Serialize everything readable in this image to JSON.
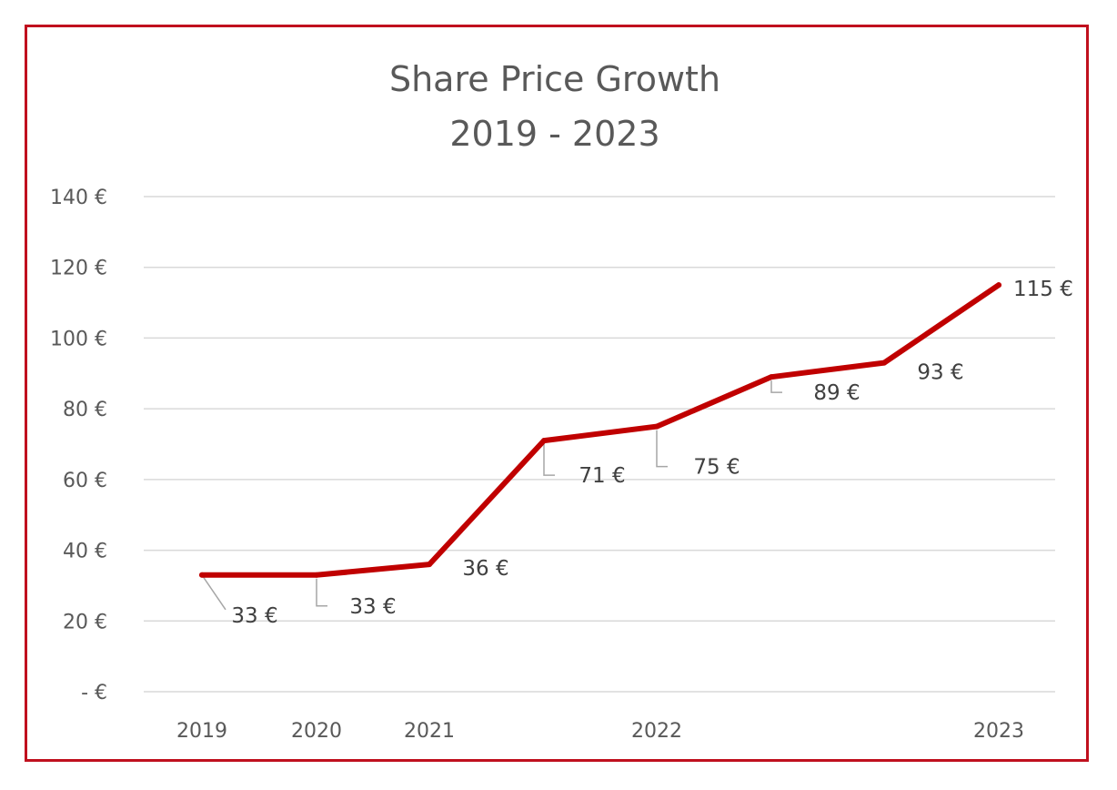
{
  "chart_data": {
    "type": "line",
    "title": "Share Price Growth",
    "subtitle": "2019 - 2023",
    "xlabel": "",
    "ylabel": "",
    "x_tick_labels": [
      "2019",
      "2020",
      "2021",
      "2022",
      "2023"
    ],
    "y_tick_labels": [
      "-   €",
      "20 €",
      "40 €",
      "60 €",
      "80 €",
      "100 €",
      "120 €",
      "140 €"
    ],
    "y_tick_values": [
      0,
      20,
      40,
      60,
      80,
      100,
      120,
      140
    ],
    "ylim": [
      0,
      140
    ],
    "grid": true,
    "legend": "none",
    "line_color": "#c00000",
    "frame_color": "#c0101e",
    "series": [
      {
        "points": [
          {
            "x": "2019",
            "y": 33,
            "label": "33 €"
          },
          {
            "x": "2020",
            "y": 33,
            "label": "33 €"
          },
          {
            "x": "2021",
            "y": 36,
            "label": "36 €"
          },
          {
            "x": "",
            "y": 71,
            "label": "71 €"
          },
          {
            "x": "2022",
            "y": 75,
            "label": "75 €"
          },
          {
            "x": "",
            "y": 89,
            "label": "89 €"
          },
          {
            "x": "",
            "y": 93,
            "label": "93 €"
          },
          {
            "x": "2023",
            "y": 115,
            "label": "115 €"
          }
        ]
      }
    ]
  }
}
